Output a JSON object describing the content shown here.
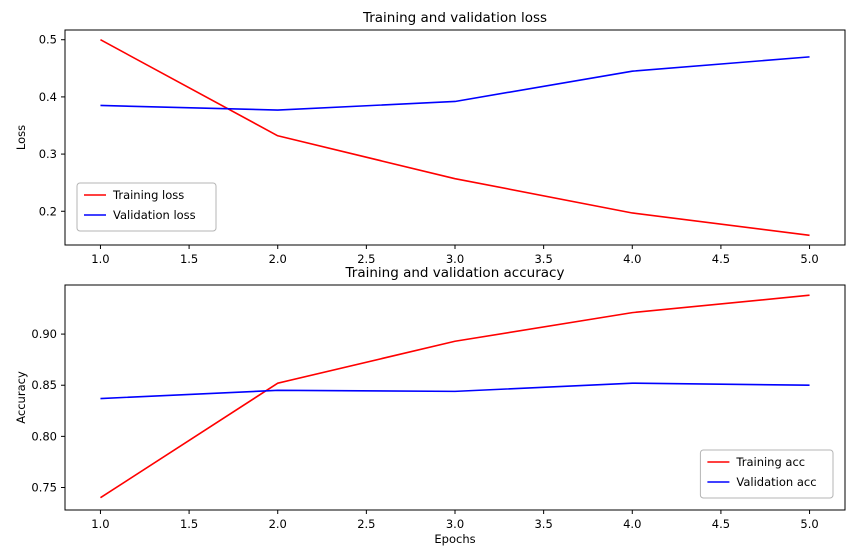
{
  "figure": {
    "background": "#ffffff"
  },
  "chart_data": [
    {
      "type": "line",
      "title": "Training and validation loss",
      "xlabel": "",
      "ylabel": "Loss",
      "x": [
        1,
        2,
        3,
        4,
        5
      ],
      "series": [
        {
          "name": "Training loss",
          "color": "#ff0000",
          "values": [
            0.5,
            0.332,
            0.257,
            0.197,
            0.158
          ]
        },
        {
          "name": "Validation loss",
          "color": "#0000ff",
          "values": [
            0.385,
            0.377,
            0.392,
            0.445,
            0.47
          ]
        }
      ],
      "xlim": [
        0.8,
        5.2
      ],
      "ylim": [
        0.141,
        0.517
      ],
      "xticks": {
        "values": [
          1.0,
          1.5,
          2.0,
          2.5,
          3.0,
          3.5,
          4.0,
          4.5,
          5.0
        ],
        "labels": [
          "1.0",
          "1.5",
          "2.0",
          "2.5",
          "3.0",
          "3.5",
          "4.0",
          "4.5",
          "5.0"
        ]
      },
      "yticks": {
        "values": [
          0.2,
          0.3,
          0.4,
          0.5
        ],
        "labels": [
          "0.2",
          "0.3",
          "0.4",
          "0.5"
        ]
      },
      "legend": {
        "position": "lower left",
        "entries": [
          "Training loss",
          "Validation loss"
        ]
      },
      "grid": false
    },
    {
      "type": "line",
      "title": "Training and validation accuracy",
      "xlabel": "Epochs",
      "ylabel": "Accuracy",
      "x": [
        1,
        2,
        3,
        4,
        5
      ],
      "series": [
        {
          "name": "Training acc",
          "color": "#ff0000",
          "values": [
            0.74,
            0.852,
            0.893,
            0.921,
            0.938
          ]
        },
        {
          "name": "Validation acc",
          "color": "#0000ff",
          "values": [
            0.837,
            0.845,
            0.844,
            0.852,
            0.85
          ]
        }
      ],
      "xlim": [
        0.8,
        5.2
      ],
      "ylim": [
        0.728,
        0.948
      ],
      "xticks": {
        "values": [
          1.0,
          1.5,
          2.0,
          2.5,
          3.0,
          3.5,
          4.0,
          4.5,
          5.0
        ],
        "labels": [
          "1.0",
          "1.5",
          "2.0",
          "2.5",
          "3.0",
          "3.5",
          "4.0",
          "4.5",
          "5.0"
        ]
      },
      "yticks": {
        "values": [
          0.75,
          0.8,
          0.85,
          0.9
        ],
        "labels": [
          "0.75",
          "0.80",
          "0.85",
          "0.90"
        ]
      },
      "legend": {
        "position": "lower right",
        "entries": [
          "Training acc",
          "Validation acc"
        ]
      },
      "grid": false
    }
  ]
}
